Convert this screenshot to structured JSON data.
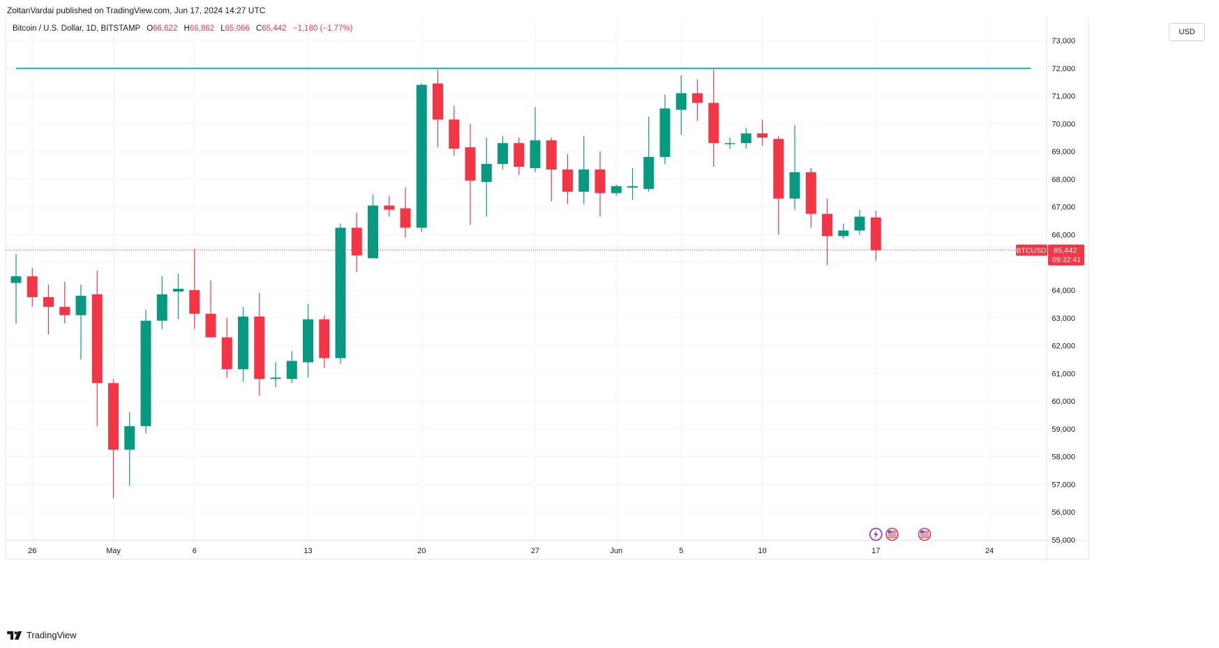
{
  "header": {
    "published_line": "ZoltanVardai published on TradingView.com, Jun 17, 2024 14:27 UTC",
    "symbol_desc": "Bitcoin / U.S. Dollar, 1D, BITSTAMP",
    "open_label": "O",
    "open": "66,622",
    "high_label": "H",
    "high": "66,862",
    "low_label": "L",
    "low": "65,066",
    "close_label": "C",
    "close": "65,442",
    "change": "−1,180 (−1.77%)",
    "currency": "USD"
  },
  "footer": {
    "brand": "TradingView"
  },
  "price_tag": {
    "symbol": "BTCUSD",
    "price": "65,442",
    "countdown": "09:32:41"
  },
  "colors": {
    "up": "#089981",
    "down": "#f23645",
    "level": "#00bcd4",
    "grid": "#f0f3fa",
    "event_purple": "#9c27b0",
    "event_red": "#f23645"
  },
  "chart_data": {
    "type": "candlestick",
    "symbol": "BTCUSD",
    "timeframe": "1D",
    "exchange": "BITSTAMP",
    "ylim": [
      55000,
      73000
    ],
    "y_ticks": [
      55000,
      56000,
      57000,
      58000,
      59000,
      60000,
      61000,
      62000,
      63000,
      64000,
      65000,
      66000,
      67000,
      68000,
      69000,
      70000,
      71000,
      72000,
      73000
    ],
    "y_tick_labels": [
      "55,000",
      "56,000",
      "57,000",
      "58,000",
      "59,000",
      "60,000",
      "61,000",
      "62,000",
      "63,000",
      "64,000",
      "65,000",
      "66,000",
      "67,000",
      "68,000",
      "69,000",
      "70,000",
      "71,000",
      "72,000",
      "73,000"
    ],
    "x_ticks": [
      {
        "day": 1,
        "label": "26"
      },
      {
        "day": 6,
        "label": "May"
      },
      {
        "day": 11,
        "label": "6"
      },
      {
        "day": 18,
        "label": "13"
      },
      {
        "day": 25,
        "label": "20"
      },
      {
        "day": 32,
        "label": "27"
      },
      {
        "day": 37,
        "label": "Jun"
      },
      {
        "day": 41,
        "label": "5"
      },
      {
        "day": 46,
        "label": "10"
      },
      {
        "day": 53,
        "label": "17"
      },
      {
        "day": 60,
        "label": "24"
      }
    ],
    "horizontal_line": {
      "value": 71990,
      "from_day": 0,
      "to_day": 62
    },
    "last_price": 65442,
    "candles": [
      {
        "day": 0,
        "o": 64260,
        "h": 65300,
        "l": 62800,
        "c": 64500
      },
      {
        "day": 1,
        "o": 64500,
        "h": 64800,
        "l": 63400,
        "c": 63750
      },
      {
        "day": 2,
        "o": 63750,
        "h": 64200,
        "l": 62400,
        "c": 63400
      },
      {
        "day": 3,
        "o": 63400,
        "h": 64300,
        "l": 62800,
        "c": 63100
      },
      {
        "day": 4,
        "o": 63100,
        "h": 64200,
        "l": 61500,
        "c": 63800
      },
      {
        "day": 5,
        "o": 63850,
        "h": 64700,
        "l": 59100,
        "c": 60650
      },
      {
        "day": 6,
        "o": 60650,
        "h": 60800,
        "l": 56500,
        "c": 58250
      },
      {
        "day": 7,
        "o": 58250,
        "h": 59600,
        "l": 56950,
        "c": 59100
      },
      {
        "day": 8,
        "o": 59100,
        "h": 63300,
        "l": 58850,
        "c": 62900
      },
      {
        "day": 9,
        "o": 62900,
        "h": 64500,
        "l": 62600,
        "c": 63850
      },
      {
        "day": 10,
        "o": 63950,
        "h": 64600,
        "l": 62950,
        "c": 64050
      },
      {
        "day": 11,
        "o": 64000,
        "h": 65500,
        "l": 62600,
        "c": 63150
      },
      {
        "day": 12,
        "o": 63150,
        "h": 64350,
        "l": 62300,
        "c": 62300
      },
      {
        "day": 13,
        "o": 62300,
        "h": 63000,
        "l": 60850,
        "c": 61150
      },
      {
        "day": 14,
        "o": 61150,
        "h": 63400,
        "l": 60700,
        "c": 63050
      },
      {
        "day": 15,
        "o": 63050,
        "h": 63900,
        "l": 60200,
        "c": 60800
      },
      {
        "day": 16,
        "o": 60800,
        "h": 61400,
        "l": 60500,
        "c": 60850
      },
      {
        "day": 17,
        "o": 60800,
        "h": 61800,
        "l": 60650,
        "c": 61450
      },
      {
        "day": 18,
        "o": 61400,
        "h": 63500,
        "l": 60850,
        "c": 62950
      },
      {
        "day": 19,
        "o": 62950,
        "h": 63100,
        "l": 61200,
        "c": 61550
      },
      {
        "day": 20,
        "o": 61550,
        "h": 66400,
        "l": 61350,
        "c": 66250
      },
      {
        "day": 21,
        "o": 66250,
        "h": 66800,
        "l": 64650,
        "c": 65250
      },
      {
        "day": 22,
        "o": 65150,
        "h": 67450,
        "l": 65150,
        "c": 67050
      },
      {
        "day": 23,
        "o": 67050,
        "h": 67400,
        "l": 66650,
        "c": 66900
      },
      {
        "day": 24,
        "o": 66950,
        "h": 67700,
        "l": 65900,
        "c": 66250
      },
      {
        "day": 25,
        "o": 66250,
        "h": 71450,
        "l": 66100,
        "c": 71400
      },
      {
        "day": 26,
        "o": 71450,
        "h": 71950,
        "l": 69150,
        "c": 70150
      },
      {
        "day": 27,
        "o": 70150,
        "h": 70650,
        "l": 68850,
        "c": 69100
      },
      {
        "day": 28,
        "o": 69150,
        "h": 70000,
        "l": 66350,
        "c": 67950
      },
      {
        "day": 29,
        "o": 67900,
        "h": 69500,
        "l": 66650,
        "c": 68550
      },
      {
        "day": 30,
        "o": 68550,
        "h": 69550,
        "l": 68350,
        "c": 69300
      },
      {
        "day": 31,
        "o": 69300,
        "h": 69500,
        "l": 68150,
        "c": 68450
      },
      {
        "day": 32,
        "o": 68400,
        "h": 70600,
        "l": 68250,
        "c": 69400
      },
      {
        "day": 33,
        "o": 69400,
        "h": 69500,
        "l": 67200,
        "c": 68350
      },
      {
        "day": 34,
        "o": 68350,
        "h": 68900,
        "l": 67100,
        "c": 67550
      },
      {
        "day": 35,
        "o": 67550,
        "h": 69550,
        "l": 67100,
        "c": 68350
      },
      {
        "day": 36,
        "o": 68350,
        "h": 69000,
        "l": 66650,
        "c": 67500
      },
      {
        "day": 37,
        "o": 67500,
        "h": 67800,
        "l": 67400,
        "c": 67750
      },
      {
        "day": 38,
        "o": 67700,
        "h": 68400,
        "l": 67250,
        "c": 67750
      },
      {
        "day": 39,
        "o": 67650,
        "h": 70250,
        "l": 67550,
        "c": 68800
      },
      {
        "day": 40,
        "o": 68800,
        "h": 71050,
        "l": 68550,
        "c": 70550
      },
      {
        "day": 41,
        "o": 70500,
        "h": 71750,
        "l": 69600,
        "c": 71100
      },
      {
        "day": 42,
        "o": 71100,
        "h": 71600,
        "l": 70100,
        "c": 70750
      },
      {
        "day": 43,
        "o": 70750,
        "h": 71950,
        "l": 68450,
        "c": 69300
      },
      {
        "day": 44,
        "o": 69300,
        "h": 69500,
        "l": 69100,
        "c": 69300
      },
      {
        "day": 45,
        "o": 69300,
        "h": 69850,
        "l": 69100,
        "c": 69650
      },
      {
        "day": 46,
        "o": 69650,
        "h": 70150,
        "l": 69200,
        "c": 69500
      },
      {
        "day": 47,
        "o": 69450,
        "h": 69550,
        "l": 66000,
        "c": 67300
      },
      {
        "day": 48,
        "o": 67300,
        "h": 69950,
        "l": 66900,
        "c": 68250
      },
      {
        "day": 49,
        "o": 68250,
        "h": 68400,
        "l": 66250,
        "c": 66750
      },
      {
        "day": 50,
        "o": 66750,
        "h": 67300,
        "l": 64900,
        "c": 65950
      },
      {
        "day": 51,
        "o": 65950,
        "h": 66400,
        "l": 65850,
        "c": 66150
      },
      {
        "day": 52,
        "o": 66150,
        "h": 66900,
        "l": 66000,
        "c": 66650
      },
      {
        "day": 53,
        "o": 66622,
        "h": 66862,
        "l": 65066,
        "c": 65442
      }
    ],
    "events": [
      {
        "day": 53.0,
        "kind": "lightning"
      },
      {
        "day": 54.0,
        "kind": "us-flag"
      },
      {
        "day": 56.0,
        "kind": "us-flag"
      }
    ]
  }
}
